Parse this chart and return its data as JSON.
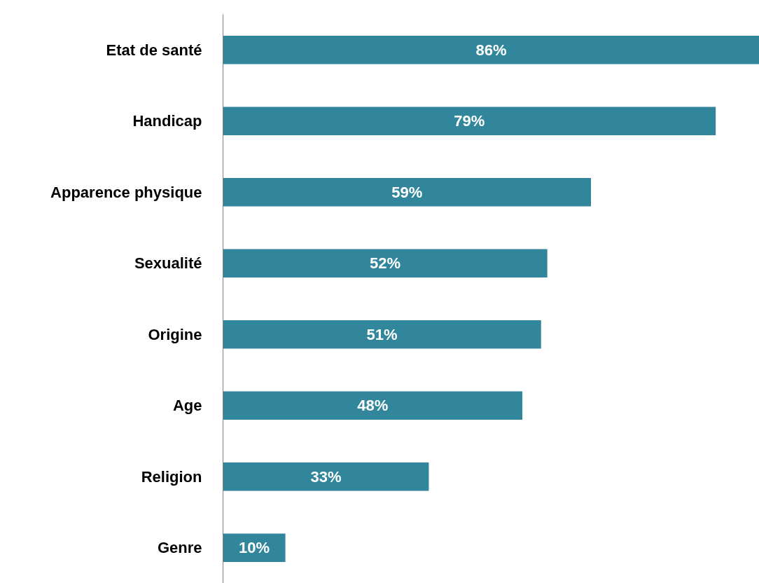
{
  "chart_data": {
    "type": "bar",
    "orientation": "horizontal",
    "categories": [
      "Etat de santé",
      "Handicap",
      "Apparence physique",
      "Sexualité",
      "Origine",
      "Age",
      "Religion",
      "Genre"
    ],
    "values": [
      86,
      79,
      59,
      52,
      51,
      48,
      33,
      10
    ],
    "value_labels": [
      "86%",
      "79%",
      "59%",
      "52%",
      "51%",
      "48%",
      "33%",
      "10%"
    ],
    "color": "#31869b",
    "tick_labels": "y"
  }
}
